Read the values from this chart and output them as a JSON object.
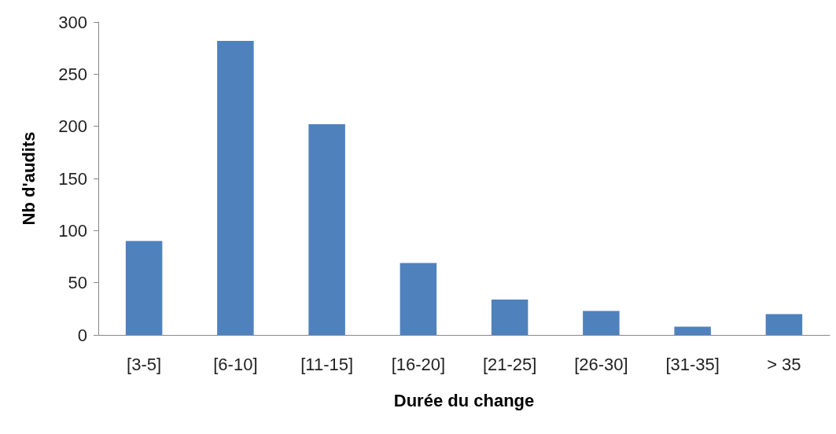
{
  "chart_data": {
    "type": "bar",
    "xlabel": "Durée du change",
    "ylabel": "Nb d'audits",
    "categories": [
      "[3-5]",
      "[6-10]",
      "[11-15]",
      "[16-20]",
      "[21-25]",
      "[26-30]",
      "[31-35]",
      "> 35"
    ],
    "values": [
      90,
      282,
      202,
      69,
      34,
      23,
      8,
      20
    ],
    "color": "#4f81bd",
    "ylim": [
      0,
      300
    ],
    "yticks": [
      0,
      50,
      100,
      150,
      200,
      250,
      300
    ],
    "grid": false
  }
}
